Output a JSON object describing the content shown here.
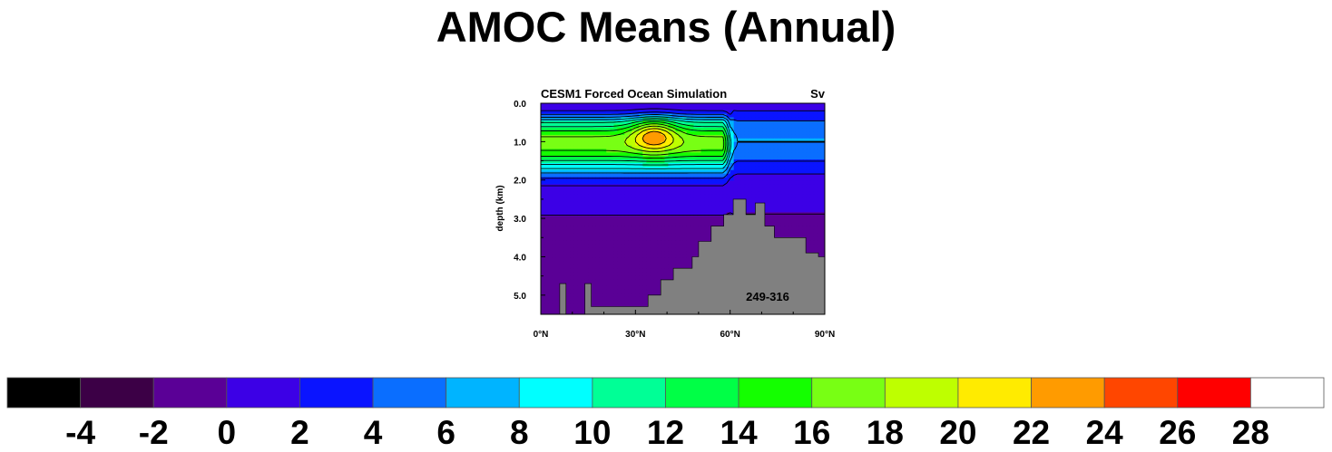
{
  "page": {
    "title": "AMOC Means (Annual)"
  },
  "chart_data": {
    "type": "heatmap",
    "subtitle_left": "CESM1 Forced Ocean Simulation",
    "subtitle_right": "Sv",
    "annotation": "249-316",
    "xlabel": "",
    "ylabel": "depth (km)",
    "xlim": [
      0,
      90
    ],
    "ylim": [
      0,
      5.5
    ],
    "x_ticks": [
      {
        "value": 0,
        "label": "0°N"
      },
      {
        "value": 30,
        "label": "30°N"
      },
      {
        "value": 60,
        "label": "60°N"
      },
      {
        "value": 90,
        "label": "90°N"
      }
    ],
    "y_ticks": [
      {
        "value": 0.0,
        "label": "0.0"
      },
      {
        "value": 1.0,
        "label": "1.0"
      },
      {
        "value": 2.0,
        "label": "2.0"
      },
      {
        "value": 3.0,
        "label": "3.0"
      },
      {
        "value": 4.0,
        "label": "4.0"
      },
      {
        "value": 5.0,
        "label": "5.0"
      }
    ],
    "land_color": "#808080",
    "bathymetry": [
      [
        0,
        5.5
      ],
      [
        6,
        5.5
      ],
      [
        6,
        4.7
      ],
      [
        8,
        4.7
      ],
      [
        8,
        5.5
      ],
      [
        14,
        5.5
      ],
      [
        14,
        4.7
      ],
      [
        16,
        4.7
      ],
      [
        16,
        5.3
      ],
      [
        34,
        5.3
      ],
      [
        34,
        5.0
      ],
      [
        38,
        5.0
      ],
      [
        38,
        4.6
      ],
      [
        42,
        4.6
      ],
      [
        42,
        4.3
      ],
      [
        48,
        4.3
      ],
      [
        48,
        4.0
      ],
      [
        50,
        4.0
      ],
      [
        50,
        3.6
      ],
      [
        54,
        3.6
      ],
      [
        54,
        3.2
      ],
      [
        58,
        3.2
      ],
      [
        58,
        2.9
      ],
      [
        61,
        2.9
      ],
      [
        61,
        2.5
      ],
      [
        65,
        2.5
      ],
      [
        65,
        2.9
      ],
      [
        68,
        2.9
      ],
      [
        68,
        2.6
      ],
      [
        71,
        2.6
      ],
      [
        71,
        3.2
      ],
      [
        74,
        3.2
      ],
      [
        74,
        3.5
      ],
      [
        84,
        3.5
      ],
      [
        84,
        3.9
      ],
      [
        88,
        3.9
      ],
      [
        88,
        4.0
      ],
      [
        90,
        4.0
      ],
      [
        90,
        5.5
      ]
    ],
    "field_peak": {
      "x": 36,
      "y": 0.8,
      "value": 25
    },
    "contour_interval": 2,
    "colorbar": {
      "colors": [
        "#000000",
        "#3c0046",
        "#5a0096",
        "#3c00e6",
        "#0a14ff",
        "#0a6eff",
        "#00b4ff",
        "#00ffff",
        "#00ff96",
        "#00ff46",
        "#14ff00",
        "#78ff14",
        "#beff00",
        "#ffeb00",
        "#ff9b00",
        "#ff4600",
        "#ff0000",
        "#ffffff"
      ],
      "labels": [
        "-4",
        "-2",
        "0",
        "2",
        "4",
        "6",
        "8",
        "10",
        "12",
        "14",
        "16",
        "18",
        "20",
        "22",
        "24",
        "26",
        "28"
      ]
    }
  }
}
